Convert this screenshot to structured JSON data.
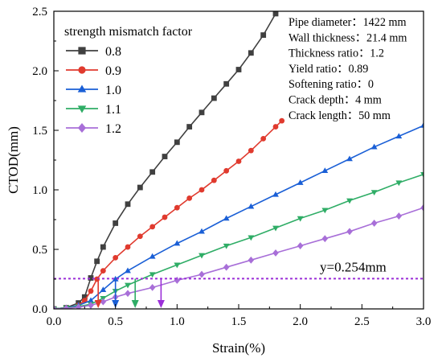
{
  "chart_data": {
    "type": "line",
    "xlabel": "Strain(%)",
    "ylabel": "CTOD(mm)",
    "xlim": [
      0,
      3.0
    ],
    "ylim": [
      0,
      2.5
    ],
    "xticks": [
      "0.0",
      "0.5",
      "1.0",
      "1.5",
      "2.0",
      "2.5",
      "3.0"
    ],
    "yticks": [
      "0.0",
      "0.5",
      "1.0",
      "1.5",
      "2.0",
      "2.5"
    ],
    "grid": false,
    "legend": {
      "title": "strength mismatch factor",
      "placement": "top-left"
    },
    "series": [
      {
        "name": "0.8",
        "color": "#404040",
        "marker": "square",
        "x": [
          0.0,
          0.1,
          0.2,
          0.25,
          0.3,
          0.35,
          0.4,
          0.5,
          0.6,
          0.7,
          0.8,
          0.9,
          1.0,
          1.1,
          1.2,
          1.3,
          1.4,
          1.5,
          1.6,
          1.7,
          1.8
        ],
        "y": [
          0.0,
          0.01,
          0.05,
          0.1,
          0.26,
          0.4,
          0.52,
          0.72,
          0.88,
          1.02,
          1.15,
          1.28,
          1.4,
          1.53,
          1.65,
          1.77,
          1.89,
          2.01,
          2.15,
          2.3,
          2.48
        ]
      },
      {
        "name": "0.9",
        "color": "#e03a2e",
        "marker": "circle",
        "x": [
          0.0,
          0.1,
          0.2,
          0.25,
          0.3,
          0.35,
          0.4,
          0.5,
          0.6,
          0.7,
          0.8,
          0.9,
          1.0,
          1.1,
          1.2,
          1.3,
          1.4,
          1.5,
          1.6,
          1.7,
          1.8,
          1.85
        ],
        "y": [
          0.0,
          0.01,
          0.03,
          0.07,
          0.15,
          0.25,
          0.32,
          0.43,
          0.52,
          0.61,
          0.69,
          0.77,
          0.85,
          0.93,
          1.0,
          1.08,
          1.16,
          1.24,
          1.33,
          1.43,
          1.53,
          1.58
        ]
      },
      {
        "name": "1.0",
        "color": "#1a5fd6",
        "marker": "triangle-up",
        "x": [
          0.0,
          0.1,
          0.2,
          0.3,
          0.4,
          0.5,
          0.6,
          0.8,
          1.0,
          1.2,
          1.4,
          1.6,
          1.8,
          2.0,
          2.2,
          2.4,
          2.6,
          2.8,
          3.0
        ],
        "y": [
          0.0,
          0.01,
          0.03,
          0.07,
          0.16,
          0.25,
          0.32,
          0.44,
          0.55,
          0.65,
          0.76,
          0.86,
          0.96,
          1.06,
          1.16,
          1.26,
          1.36,
          1.45,
          1.54
        ]
      },
      {
        "name": "1.1",
        "color": "#2fad66",
        "marker": "triangle-down",
        "x": [
          0.0,
          0.1,
          0.2,
          0.3,
          0.4,
          0.5,
          0.6,
          0.8,
          1.0,
          1.2,
          1.4,
          1.6,
          1.8,
          2.0,
          2.2,
          2.4,
          2.6,
          2.8,
          3.0
        ],
        "y": [
          0.0,
          0.01,
          0.02,
          0.04,
          0.09,
          0.15,
          0.2,
          0.29,
          0.37,
          0.45,
          0.53,
          0.6,
          0.68,
          0.76,
          0.83,
          0.91,
          0.98,
          1.06,
          1.13
        ]
      },
      {
        "name": "1.2",
        "color": "#a86fd8",
        "marker": "diamond",
        "x": [
          0.0,
          0.1,
          0.2,
          0.3,
          0.4,
          0.5,
          0.6,
          0.8,
          1.0,
          1.2,
          1.4,
          1.6,
          1.8,
          2.0,
          2.2,
          2.4,
          2.6,
          2.8,
          3.0
        ],
        "y": [
          0.0,
          0.005,
          0.015,
          0.03,
          0.06,
          0.1,
          0.13,
          0.18,
          0.24,
          0.29,
          0.35,
          0.41,
          0.47,
          0.53,
          0.59,
          0.65,
          0.72,
          0.78,
          0.85
        ]
      }
    ],
    "threshold": {
      "y": 0.254,
      "label": "y=0.254mm",
      "color": "#9b2fd8"
    },
    "arrows": [
      {
        "x": 0.36,
        "color": "#e03a2e"
      },
      {
        "x": 0.5,
        "color": "#1a5fd6"
      },
      {
        "x": 0.66,
        "color": "#2fad66"
      },
      {
        "x": 0.87,
        "color": "#9b2fd8"
      }
    ],
    "annotations": [
      "Pipe diameter：1422 mm",
      "Wall thickness：21.4 mm",
      "Thickness ratio：1.2",
      "Yield ratio：0.89",
      "Softening ratio：0",
      "Crack depth：4 mm",
      "Crack length：50 mm"
    ]
  }
}
